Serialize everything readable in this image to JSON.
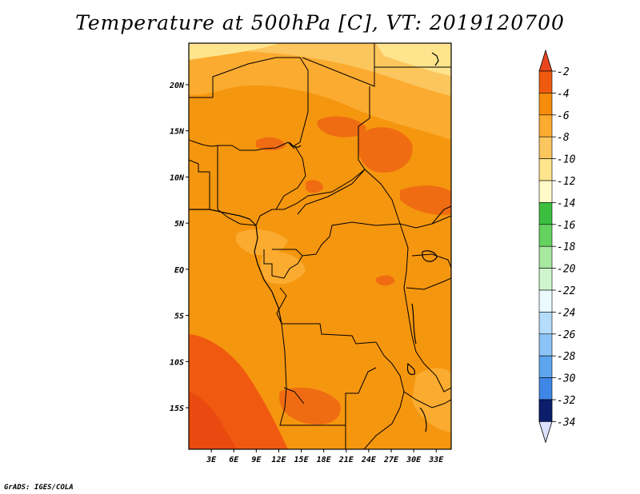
{
  "title": "Temperature at 500hPa [C], VT: 2019120700",
  "credit": "GrADS: IGES/COLA",
  "map": {
    "lat_ticks": [
      {
        "lat": 20,
        "label": "20N"
      },
      {
        "lat": 15,
        "label": "15N"
      },
      {
        "lat": 10,
        "label": "10N"
      },
      {
        "lat": 5,
        "label": "5N"
      },
      {
        "lat": 0,
        "label": "EQ"
      },
      {
        "lat": -5,
        "label": "5S"
      },
      {
        "lat": -10,
        "label": "10S"
      },
      {
        "lat": -15,
        "label": "15S"
      }
    ],
    "lon_ticks": [
      {
        "lon": 3,
        "label": "3E"
      },
      {
        "lon": 6,
        "label": "6E"
      },
      {
        "lon": 9,
        "label": "9E"
      },
      {
        "lon": 12,
        "label": "12E"
      },
      {
        "lon": 15,
        "label": "15E"
      },
      {
        "lon": 18,
        "label": "18E"
      },
      {
        "lon": 21,
        "label": "21E"
      },
      {
        "lon": 24,
        "label": "24E"
      },
      {
        "lon": 27,
        "label": "27E"
      },
      {
        "lon": 30,
        "label": "30E"
      },
      {
        "lon": 33,
        "label": "33E"
      }
    ],
    "lon_range": [
      0,
      35
    ],
    "lat_range": [
      -19.5,
      24.5
    ]
  },
  "colorbar": {
    "levels": [
      {
        "label": "-2",
        "color": "#f05a10"
      },
      {
        "label": "-4",
        "color": "#f58c0a"
      },
      {
        "label": "-6",
        "color": "#fbab2f"
      },
      {
        "label": "-8",
        "color": "#fcc65e"
      },
      {
        "label": "-10",
        "color": "#fee58d"
      },
      {
        "label": "-12",
        "color": "#fffac8"
      },
      {
        "label": "-14",
        "color": "#3cbf40"
      },
      {
        "label": "-16",
        "color": "#65d15f"
      },
      {
        "label": "-18",
        "color": "#a6e8a0"
      },
      {
        "label": "-20",
        "color": "#cff5cf"
      },
      {
        "label": "-22",
        "color": "#eafaff"
      },
      {
        "label": "-24",
        "color": "#b5dcfb"
      },
      {
        "label": "-26",
        "color": "#8cc4f7"
      },
      {
        "label": "-28",
        "color": "#5ea5f0"
      },
      {
        "label": "-30",
        "color": "#3f87e6"
      },
      {
        "label": "-32",
        "color": "#1f63d1"
      },
      {
        "label": "-34",
        "color": "#0f3fa8"
      }
    ],
    "top_arrow_color": "#e8461e",
    "bottom_arrow_color": "#dbe0ff",
    "extra_bottom_color": "#0b1d6b"
  }
}
